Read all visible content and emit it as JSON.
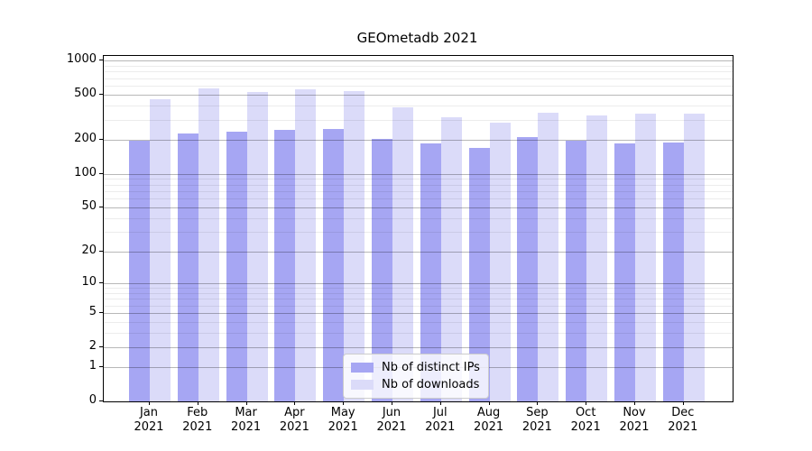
{
  "chart_data": {
    "type": "bar",
    "title": "GEOmetadb 2021",
    "categories": [
      "Jan 2021",
      "Feb 2021",
      "Mar 2021",
      "Apr 2021",
      "May 2021",
      "Jun 2021",
      "Jul 2021",
      "Aug 2021",
      "Sep 2021",
      "Oct 2021",
      "Nov 2021",
      "Dec 2021"
    ],
    "x_tick_line1": [
      "Jan",
      "Feb",
      "Mar",
      "Apr",
      "May",
      "Jun",
      "Jul",
      "Aug",
      "Sep",
      "Oct",
      "Nov",
      "Dec"
    ],
    "x_tick_line2": "2021",
    "series": [
      {
        "name": "Nb of distinct IPs",
        "color": "#a6a6f3",
        "values": [
          195,
          228,
          238,
          245,
          250,
          205,
          187,
          171,
          210,
          197,
          186,
          189
        ]
      },
      {
        "name": "Nb of downloads",
        "color": "#dbdbf9",
        "values": [
          455,
          565,
          530,
          558,
          535,
          385,
          315,
          283,
          346,
          326,
          340,
          342
        ]
      }
    ],
    "y_scale": "log(v+1)",
    "ylim": [
      0,
      1100
    ],
    "y_ticks": [
      1000,
      500,
      200,
      100,
      50,
      20,
      10,
      5,
      2,
      1,
      0
    ],
    "y_minor_ticks": [
      3,
      4,
      6,
      7,
      8,
      9,
      30,
      40,
      60,
      70,
      80,
      90,
      300,
      400,
      600,
      700,
      800,
      900
    ],
    "grid": true,
    "legend_position": "inside-bottom-center"
  },
  "colors": {
    "background": "#ffffff",
    "spine": "#000000",
    "major_grid": "rgba(0,0,0,0.28)",
    "minor_grid": "rgba(0,0,0,0.075)"
  }
}
